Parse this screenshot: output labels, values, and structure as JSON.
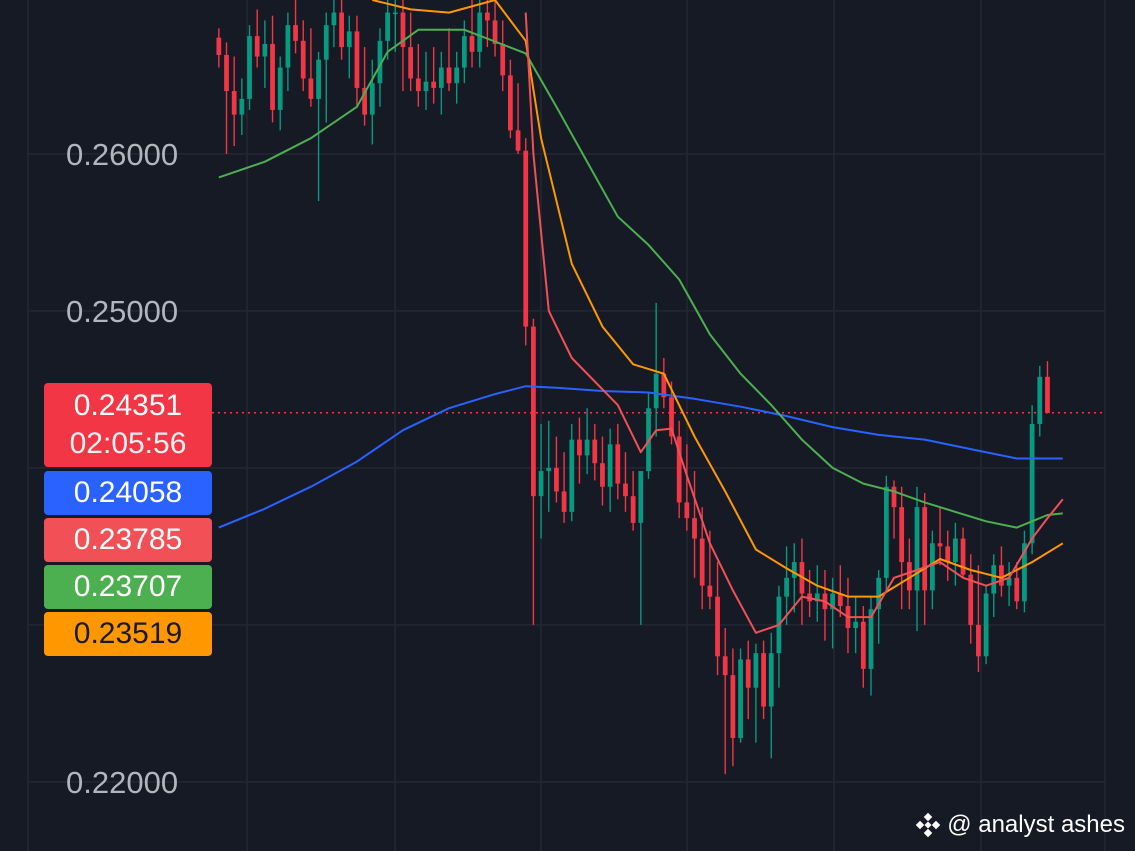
{
  "chart_data": {
    "type": "candlestick",
    "y_axis": {
      "ticks": [
        "0.26000",
        "0.25000",
        "0.22000"
      ],
      "range": [
        0.2156,
        0.2698
      ]
    },
    "x_range": [
      0,
      116
    ],
    "last_price_line": 0.24351,
    "price_badges": [
      {
        "value": "0.24351",
        "sub": "02:05:56",
        "color": "#f23645",
        "text_color": "#ffffff"
      },
      {
        "value": "0.24058",
        "color": "#2962ff",
        "text_color": "#ffffff"
      },
      {
        "value": "0.23785",
        "color": "#f05056",
        "text_color": "#ffffff"
      },
      {
        "value": "0.23707",
        "color": "#4caf50",
        "text_color": "#ffffff"
      },
      {
        "value": "0.23519",
        "color": "#ff9800",
        "text_color": "#161a25"
      }
    ],
    "candles": [
      [
        0,
        0.2674,
        0.268,
        0.2655,
        0.2663
      ],
      [
        1,
        0.2663,
        0.2671,
        0.26,
        0.264
      ],
      [
        2,
        0.264,
        0.2662,
        0.2605,
        0.2625
      ],
      [
        3,
        0.2625,
        0.2648,
        0.2612,
        0.2635
      ],
      [
        4,
        0.2635,
        0.2682,
        0.2628,
        0.2675
      ],
      [
        5,
        0.2675,
        0.2692,
        0.2655,
        0.2662
      ],
      [
        6,
        0.2662,
        0.2685,
        0.2642,
        0.267
      ],
      [
        7,
        0.267,
        0.2688,
        0.262,
        0.2628
      ],
      [
        8,
        0.2628,
        0.2662,
        0.2615,
        0.2655
      ],
      [
        9,
        0.2655,
        0.269,
        0.264,
        0.2682
      ],
      [
        10,
        0.2682,
        0.2698,
        0.2664,
        0.2672
      ],
      [
        11,
        0.2672,
        0.2685,
        0.264,
        0.2648
      ],
      [
        12,
        0.2648,
        0.268,
        0.263,
        0.2635
      ],
      [
        13,
        0.2635,
        0.2665,
        0.257,
        0.266
      ],
      [
        14,
        0.266,
        0.269,
        0.262,
        0.2682
      ],
      [
        15,
        0.2682,
        0.2698,
        0.2668,
        0.269
      ],
      [
        16,
        0.269,
        0.2698,
        0.266,
        0.2668
      ],
      [
        17,
        0.2668,
        0.2688,
        0.2648,
        0.2678
      ],
      [
        18,
        0.2678,
        0.2688,
        0.263,
        0.2642
      ],
      [
        19,
        0.2642,
        0.2668,
        0.2618,
        0.2625
      ],
      [
        20,
        0.2625,
        0.266,
        0.2606,
        0.2645
      ],
      [
        21,
        0.2645,
        0.268,
        0.263,
        0.2672
      ],
      [
        22,
        0.2672,
        0.2698,
        0.266,
        0.269
      ],
      [
        23,
        0.269,
        0.2698,
        0.2665,
        0.269
      ],
      [
        24,
        0.269,
        0.2698,
        0.264,
        0.2668
      ],
      [
        25,
        0.2668,
        0.269,
        0.264,
        0.2648
      ],
      [
        26,
        0.2648,
        0.267,
        0.263,
        0.264
      ],
      [
        27,
        0.264,
        0.2665,
        0.2628,
        0.2646
      ],
      [
        28,
        0.2646,
        0.2668,
        0.2632,
        0.2642
      ],
      [
        29,
        0.2642,
        0.2665,
        0.2625,
        0.2655
      ],
      [
        30,
        0.2655,
        0.268,
        0.264,
        0.2645
      ],
      [
        31,
        0.2645,
        0.2665,
        0.2632,
        0.2655
      ],
      [
        32,
        0.2655,
        0.2685,
        0.2645,
        0.2675
      ],
      [
        33,
        0.2675,
        0.2698,
        0.2655,
        0.2665
      ],
      [
        34,
        0.2665,
        0.2698,
        0.2655,
        0.269
      ],
      [
        35,
        0.269,
        0.2698,
        0.2668,
        0.2685
      ],
      [
        36,
        0.2685,
        0.2698,
        0.2662,
        0.267
      ],
      [
        37,
        0.267,
        0.2685,
        0.264,
        0.265
      ],
      [
        38,
        0.265,
        0.266,
        0.261,
        0.2615
      ],
      [
        39,
        0.2615,
        0.2645,
        0.26,
        0.2602
      ],
      [
        40,
        0.2602,
        0.261,
        0.2478,
        0.249
      ],
      [
        41,
        0.249,
        0.2495,
        0.23,
        0.2382
      ],
      [
        42,
        0.2382,
        0.2428,
        0.2355,
        0.2398
      ],
      [
        43,
        0.2398,
        0.243,
        0.2372,
        0.24
      ],
      [
        44,
        0.24,
        0.242,
        0.2378,
        0.2385
      ],
      [
        45,
        0.2385,
        0.241,
        0.2365,
        0.2372
      ],
      [
        46,
        0.2372,
        0.2428,
        0.2366,
        0.2418
      ],
      [
        47,
        0.2418,
        0.2432,
        0.239,
        0.2408
      ],
      [
        48,
        0.2408,
        0.2438,
        0.2396,
        0.2418
      ],
      [
        49,
        0.2418,
        0.2428,
        0.2392,
        0.2403
      ],
      [
        50,
        0.2403,
        0.242,
        0.2376,
        0.2388
      ],
      [
        51,
        0.2388,
        0.2425,
        0.2372,
        0.2415
      ],
      [
        52,
        0.2415,
        0.2428,
        0.238,
        0.239
      ],
      [
        53,
        0.239,
        0.241,
        0.2372,
        0.2382
      ],
      [
        54,
        0.2382,
        0.2398,
        0.236,
        0.2365
      ],
      [
        55,
        0.2365,
        0.2395,
        0.23,
        0.2398
      ],
      [
        56,
        0.2398,
        0.2448,
        0.2393,
        0.2438
      ],
      [
        57,
        0.2438,
        0.2505,
        0.242,
        0.246
      ],
      [
        58,
        0.246,
        0.247,
        0.2438,
        0.2445
      ],
      [
        59,
        0.2445,
        0.2455,
        0.2415,
        0.242
      ],
      [
        60,
        0.242,
        0.243,
        0.2368,
        0.2378
      ],
      [
        61,
        0.2378,
        0.2415,
        0.236,
        0.2368
      ],
      [
        62,
        0.2368,
        0.2398,
        0.233,
        0.2355
      ],
      [
        63,
        0.2355,
        0.2375,
        0.231,
        0.2325
      ],
      [
        64,
        0.2325,
        0.236,
        0.231,
        0.2318
      ],
      [
        65,
        0.2318,
        0.234,
        0.2268,
        0.228
      ],
      [
        66,
        0.228,
        0.2298,
        0.2205,
        0.2268
      ],
      [
        67,
        0.2268,
        0.2285,
        0.221,
        0.2228
      ],
      [
        68,
        0.2228,
        0.2285,
        0.2225,
        0.2278
      ],
      [
        69,
        0.2278,
        0.229,
        0.224,
        0.226
      ],
      [
        70,
        0.226,
        0.2288,
        0.2225,
        0.2282
      ],
      [
        71,
        0.2282,
        0.229,
        0.224,
        0.2248
      ],
      [
        72,
        0.2248,
        0.2295,
        0.2215,
        0.2282
      ],
      [
        73,
        0.2282,
        0.2325,
        0.226,
        0.2318
      ],
      [
        74,
        0.2318,
        0.235,
        0.23,
        0.233
      ],
      [
        75,
        0.233,
        0.2352,
        0.2308,
        0.234
      ],
      [
        76,
        0.234,
        0.2355,
        0.23,
        0.232
      ],
      [
        77,
        0.232,
        0.2335,
        0.2305,
        0.2315
      ],
      [
        78,
        0.2315,
        0.2338,
        0.2302,
        0.232
      ],
      [
        79,
        0.232,
        0.2335,
        0.229,
        0.231
      ],
      [
        80,
        0.231,
        0.233,
        0.2285,
        0.232
      ],
      [
        81,
        0.232,
        0.2338,
        0.2305,
        0.2312
      ],
      [
        82,
        0.2312,
        0.233,
        0.2282,
        0.2298
      ],
      [
        83,
        0.2298,
        0.2318,
        0.2282,
        0.2302
      ],
      [
        84,
        0.2302,
        0.2312,
        0.226,
        0.2272
      ],
      [
        85,
        0.2272,
        0.2318,
        0.2255,
        0.231
      ],
      [
        86,
        0.231,
        0.2335,
        0.2288,
        0.233
      ],
      [
        87,
        0.233,
        0.2395,
        0.2322,
        0.2388
      ],
      [
        88,
        0.2388,
        0.2392,
        0.2355,
        0.2375
      ],
      [
        89,
        0.2375,
        0.2388,
        0.231,
        0.234
      ],
      [
        90,
        0.234,
        0.2355,
        0.231,
        0.2322
      ],
      [
        91,
        0.2322,
        0.2388,
        0.2296,
        0.2375
      ],
      [
        92,
        0.2375,
        0.2384,
        0.23,
        0.2322
      ],
      [
        93,
        0.2322,
        0.236,
        0.231,
        0.2352
      ],
      [
        94,
        0.2352,
        0.2375,
        0.2338,
        0.235
      ],
      [
        95,
        0.235,
        0.236,
        0.2328,
        0.234
      ],
      [
        96,
        0.234,
        0.2365,
        0.2325,
        0.2355
      ],
      [
        97,
        0.2355,
        0.2362,
        0.233,
        0.2332
      ],
      [
        98,
        0.2332,
        0.2345,
        0.2288,
        0.23
      ],
      [
        99,
        0.23,
        0.2338,
        0.227,
        0.228
      ],
      [
        100,
        0.228,
        0.2325,
        0.2275,
        0.232
      ],
      [
        101,
        0.232,
        0.2345,
        0.2305,
        0.2338
      ],
      [
        102,
        0.2338,
        0.235,
        0.2318,
        0.2325
      ],
      [
        103,
        0.2325,
        0.234,
        0.2312,
        0.233
      ],
      [
        104,
        0.233,
        0.234,
        0.231,
        0.2315
      ],
      [
        105,
        0.2315,
        0.236,
        0.2308,
        0.2352
      ],
      [
        106,
        0.2352,
        0.244,
        0.2345,
        0.2428
      ],
      [
        107,
        0.2428,
        0.2465,
        0.242,
        0.2458
      ],
      [
        108,
        0.2458,
        0.2468,
        0.2435,
        0.2435
      ]
    ],
    "moving_averages": [
      {
        "color": "#2962ff",
        "points": [
          [
            0,
            0.2362
          ],
          [
            6,
            0.2374
          ],
          [
            12,
            0.2388
          ],
          [
            18,
            0.2404
          ],
          [
            24,
            0.2424
          ],
          [
            30,
            0.2438
          ],
          [
            36,
            0.2447
          ],
          [
            40,
            0.2452
          ],
          [
            44,
            0.2451
          ],
          [
            50,
            0.2449
          ],
          [
            56,
            0.2448
          ],
          [
            62,
            0.2444
          ],
          [
            68,
            0.2439
          ],
          [
            74,
            0.2433
          ],
          [
            80,
            0.2426
          ],
          [
            86,
            0.2421
          ],
          [
            92,
            0.2418
          ],
          [
            98,
            0.2412
          ],
          [
            104,
            0.2406
          ],
          [
            110,
            0.2406
          ]
        ]
      },
      {
        "color": "#4caf50",
        "points": [
          [
            0,
            0.2585
          ],
          [
            6,
            0.2595
          ],
          [
            12,
            0.261
          ],
          [
            18,
            0.263
          ],
          [
            22,
            0.2665
          ],
          [
            26,
            0.2679
          ],
          [
            32,
            0.2679
          ],
          [
            40,
            0.2664
          ],
          [
            44,
            0.263
          ],
          [
            48,
            0.2595
          ],
          [
            52,
            0.256
          ],
          [
            56,
            0.2542
          ],
          [
            60,
            0.252
          ],
          [
            64,
            0.2485
          ],
          [
            68,
            0.246
          ],
          [
            72,
            0.244
          ],
          [
            76,
            0.2418
          ],
          [
            80,
            0.24
          ],
          [
            84,
            0.239
          ],
          [
            88,
            0.2385
          ],
          [
            92,
            0.2378
          ],
          [
            96,
            0.2372
          ],
          [
            100,
            0.2366
          ],
          [
            104,
            0.2362
          ],
          [
            108,
            0.237
          ],
          [
            110,
            0.2371
          ]
        ]
      },
      {
        "color": "#ff9800",
        "points": [
          [
            20,
            0.2698
          ],
          [
            25,
            0.2692
          ],
          [
            30,
            0.269
          ],
          [
            36,
            0.2698
          ],
          [
            40,
            0.2672
          ],
          [
            42,
            0.261
          ],
          [
            46,
            0.253
          ],
          [
            50,
            0.249
          ],
          [
            54,
            0.2466
          ],
          [
            58,
            0.246
          ],
          [
            62,
            0.242
          ],
          [
            66,
            0.2385
          ],
          [
            70,
            0.2348
          ],
          [
            74,
            0.2336
          ],
          [
            78,
            0.2325
          ],
          [
            82,
            0.2318
          ],
          [
            86,
            0.2318
          ],
          [
            90,
            0.233
          ],
          [
            94,
            0.2342
          ],
          [
            98,
            0.2335
          ],
          [
            102,
            0.233
          ],
          [
            106,
            0.234
          ],
          [
            110,
            0.2352
          ]
        ]
      },
      {
        "color": "#f05056",
        "points": [
          [
            40,
            0.269
          ],
          [
            41,
            0.26
          ],
          [
            43,
            0.25
          ],
          [
            46,
            0.247
          ],
          [
            49,
            0.2455
          ],
          [
            52,
            0.244
          ],
          [
            55,
            0.241
          ],
          [
            57,
            0.2424
          ],
          [
            59,
            0.2425
          ],
          [
            61,
            0.2395
          ],
          [
            64,
            0.2352
          ],
          [
            67,
            0.2322
          ],
          [
            70,
            0.2295
          ],
          [
            73,
            0.23
          ],
          [
            76,
            0.2318
          ],
          [
            79,
            0.2315
          ],
          [
            82,
            0.2305
          ],
          [
            85,
            0.2305
          ],
          [
            88,
            0.233
          ],
          [
            91,
            0.2335
          ],
          [
            94,
            0.234
          ],
          [
            97,
            0.233
          ],
          [
            100,
            0.2325
          ],
          [
            103,
            0.233
          ],
          [
            106,
            0.2355
          ],
          [
            108,
            0.2368
          ],
          [
            110,
            0.238
          ]
        ]
      }
    ],
    "up_color": "#089981",
    "down_color": "#f23645"
  },
  "watermark": {
    "text": "@ analyst ashes",
    "icon": "binance-diamond-icon"
  }
}
